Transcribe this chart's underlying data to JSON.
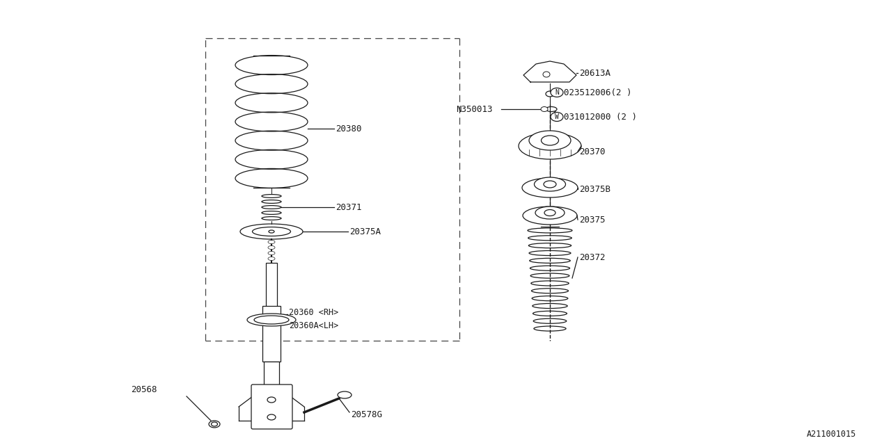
{
  "bg_color": "#ffffff",
  "line_color": "#1a1a1a",
  "fig_width": 12.8,
  "fig_height": 6.4,
  "dpi": 100,
  "watermark": "A211001015",
  "xlim": [
    0,
    1280
  ],
  "ylim": [
    0,
    640
  ]
}
